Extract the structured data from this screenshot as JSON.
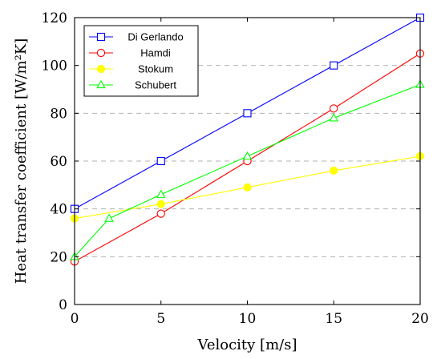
{
  "chart_data": {
    "type": "line",
    "xlabel": "Velocity [m/s]",
    "ylabel": "Heat transfer coefficient [W/m²K]",
    "xlim": [
      0,
      20
    ],
    "ylim": [
      0,
      120
    ],
    "xticks": [
      0,
      5,
      10,
      15,
      20
    ],
    "yticks": [
      0,
      20,
      40,
      60,
      80,
      100,
      120
    ],
    "grid": "horizontal-dashed",
    "legend_position": "top-left",
    "series": [
      {
        "name": "Di Gerlando",
        "color": "#0000ff",
        "marker": "square-open",
        "x": [
          0,
          5,
          10,
          15,
          20
        ],
        "y": [
          40,
          60,
          80,
          100,
          120
        ]
      },
      {
        "name": "Hamdi",
        "color": "#ff0000",
        "marker": "circle-open",
        "x": [
          0,
          5,
          10,
          15,
          20
        ],
        "y": [
          18,
          38,
          60,
          82,
          105
        ]
      },
      {
        "name": "Stokum",
        "color": "#ffff00",
        "marker": "circle-filled",
        "x": [
          0,
          5,
          10,
          15,
          20
        ],
        "y": [
          36,
          42,
          49,
          56,
          62
        ]
      },
      {
        "name": "Schubert",
        "color": "#00ff00",
        "marker": "triangle-open",
        "x": [
          0,
          2,
          5,
          10,
          15,
          20
        ],
        "y": [
          20,
          36,
          46,
          62,
          78,
          92
        ]
      }
    ]
  }
}
